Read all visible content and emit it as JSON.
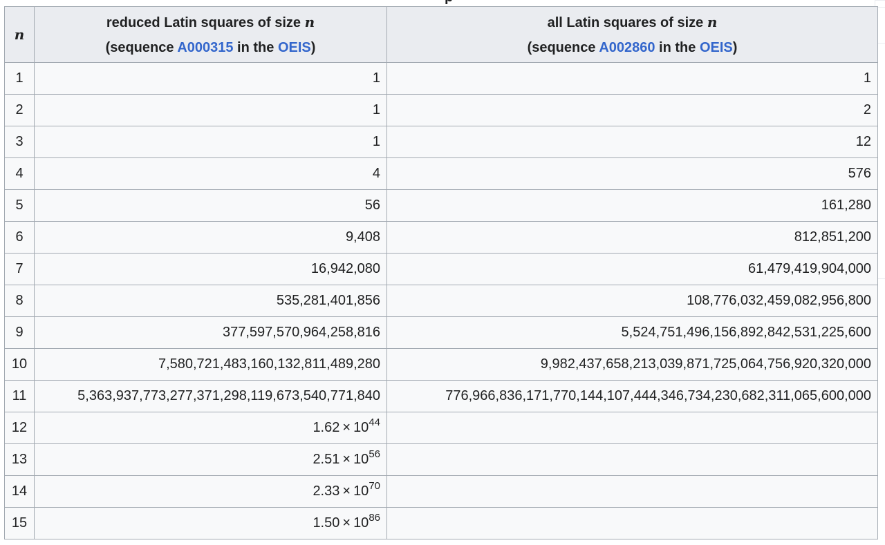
{
  "caption_fragment": "p",
  "header": {
    "n_var": "n",
    "col1": {
      "line1": "reduced Latin squares of size ",
      "var": "n",
      "seq_prefix": "(sequence ",
      "seq_id": "A000315",
      "seq_mid": " in the ",
      "seq_db": "OEIS",
      "seq_suffix": ")"
    },
    "col2": {
      "line1": "all Latin squares of size ",
      "var": "n",
      "seq_prefix": "(sequence ",
      "seq_id": "A002860",
      "seq_mid": " in the ",
      "seq_db": "OEIS",
      "seq_suffix": ")"
    }
  },
  "rows": [
    {
      "n": "1",
      "reduced": "1",
      "all": "1"
    },
    {
      "n": "2",
      "reduced": "1",
      "all": "2"
    },
    {
      "n": "3",
      "reduced": "1",
      "all": "12"
    },
    {
      "n": "4",
      "reduced": "4",
      "all": "576"
    },
    {
      "n": "5",
      "reduced": "56",
      "all": "161,280"
    },
    {
      "n": "6",
      "reduced": "9,408",
      "all": "812,851,200"
    },
    {
      "n": "7",
      "reduced": "16,942,080",
      "all": "61,479,419,904,000"
    },
    {
      "n": "8",
      "reduced": "535,281,401,856",
      "all": "108,776,032,459,082,956,800"
    },
    {
      "n": "9",
      "reduced": "377,597,570,964,258,816",
      "all": "5,524,751,496,156,892,842,531,225,600"
    },
    {
      "n": "10",
      "reduced": "7,580,721,483,160,132,811,489,280",
      "all": "9,982,437,658,213,039,871,725,064,756,920,320,000"
    },
    {
      "n": "11",
      "reduced": "5,363,937,773,277,371,298,119,673,540,771,840",
      "all": "776,966,836,171,770,144,107,444,346,734,230,682,311,065,600,000"
    }
  ],
  "approx_rows": [
    {
      "n": "12",
      "mantissa": "1.62",
      "times": "×",
      "base": "10",
      "exp": "44"
    },
    {
      "n": "13",
      "mantissa": "2.51",
      "times": "×",
      "base": "10",
      "exp": "56"
    },
    {
      "n": "14",
      "mantissa": "2.33",
      "times": "×",
      "base": "10",
      "exp": "70"
    },
    {
      "n": "15",
      "mantissa": "1.50",
      "times": "×",
      "base": "10",
      "exp": "86"
    }
  ]
}
